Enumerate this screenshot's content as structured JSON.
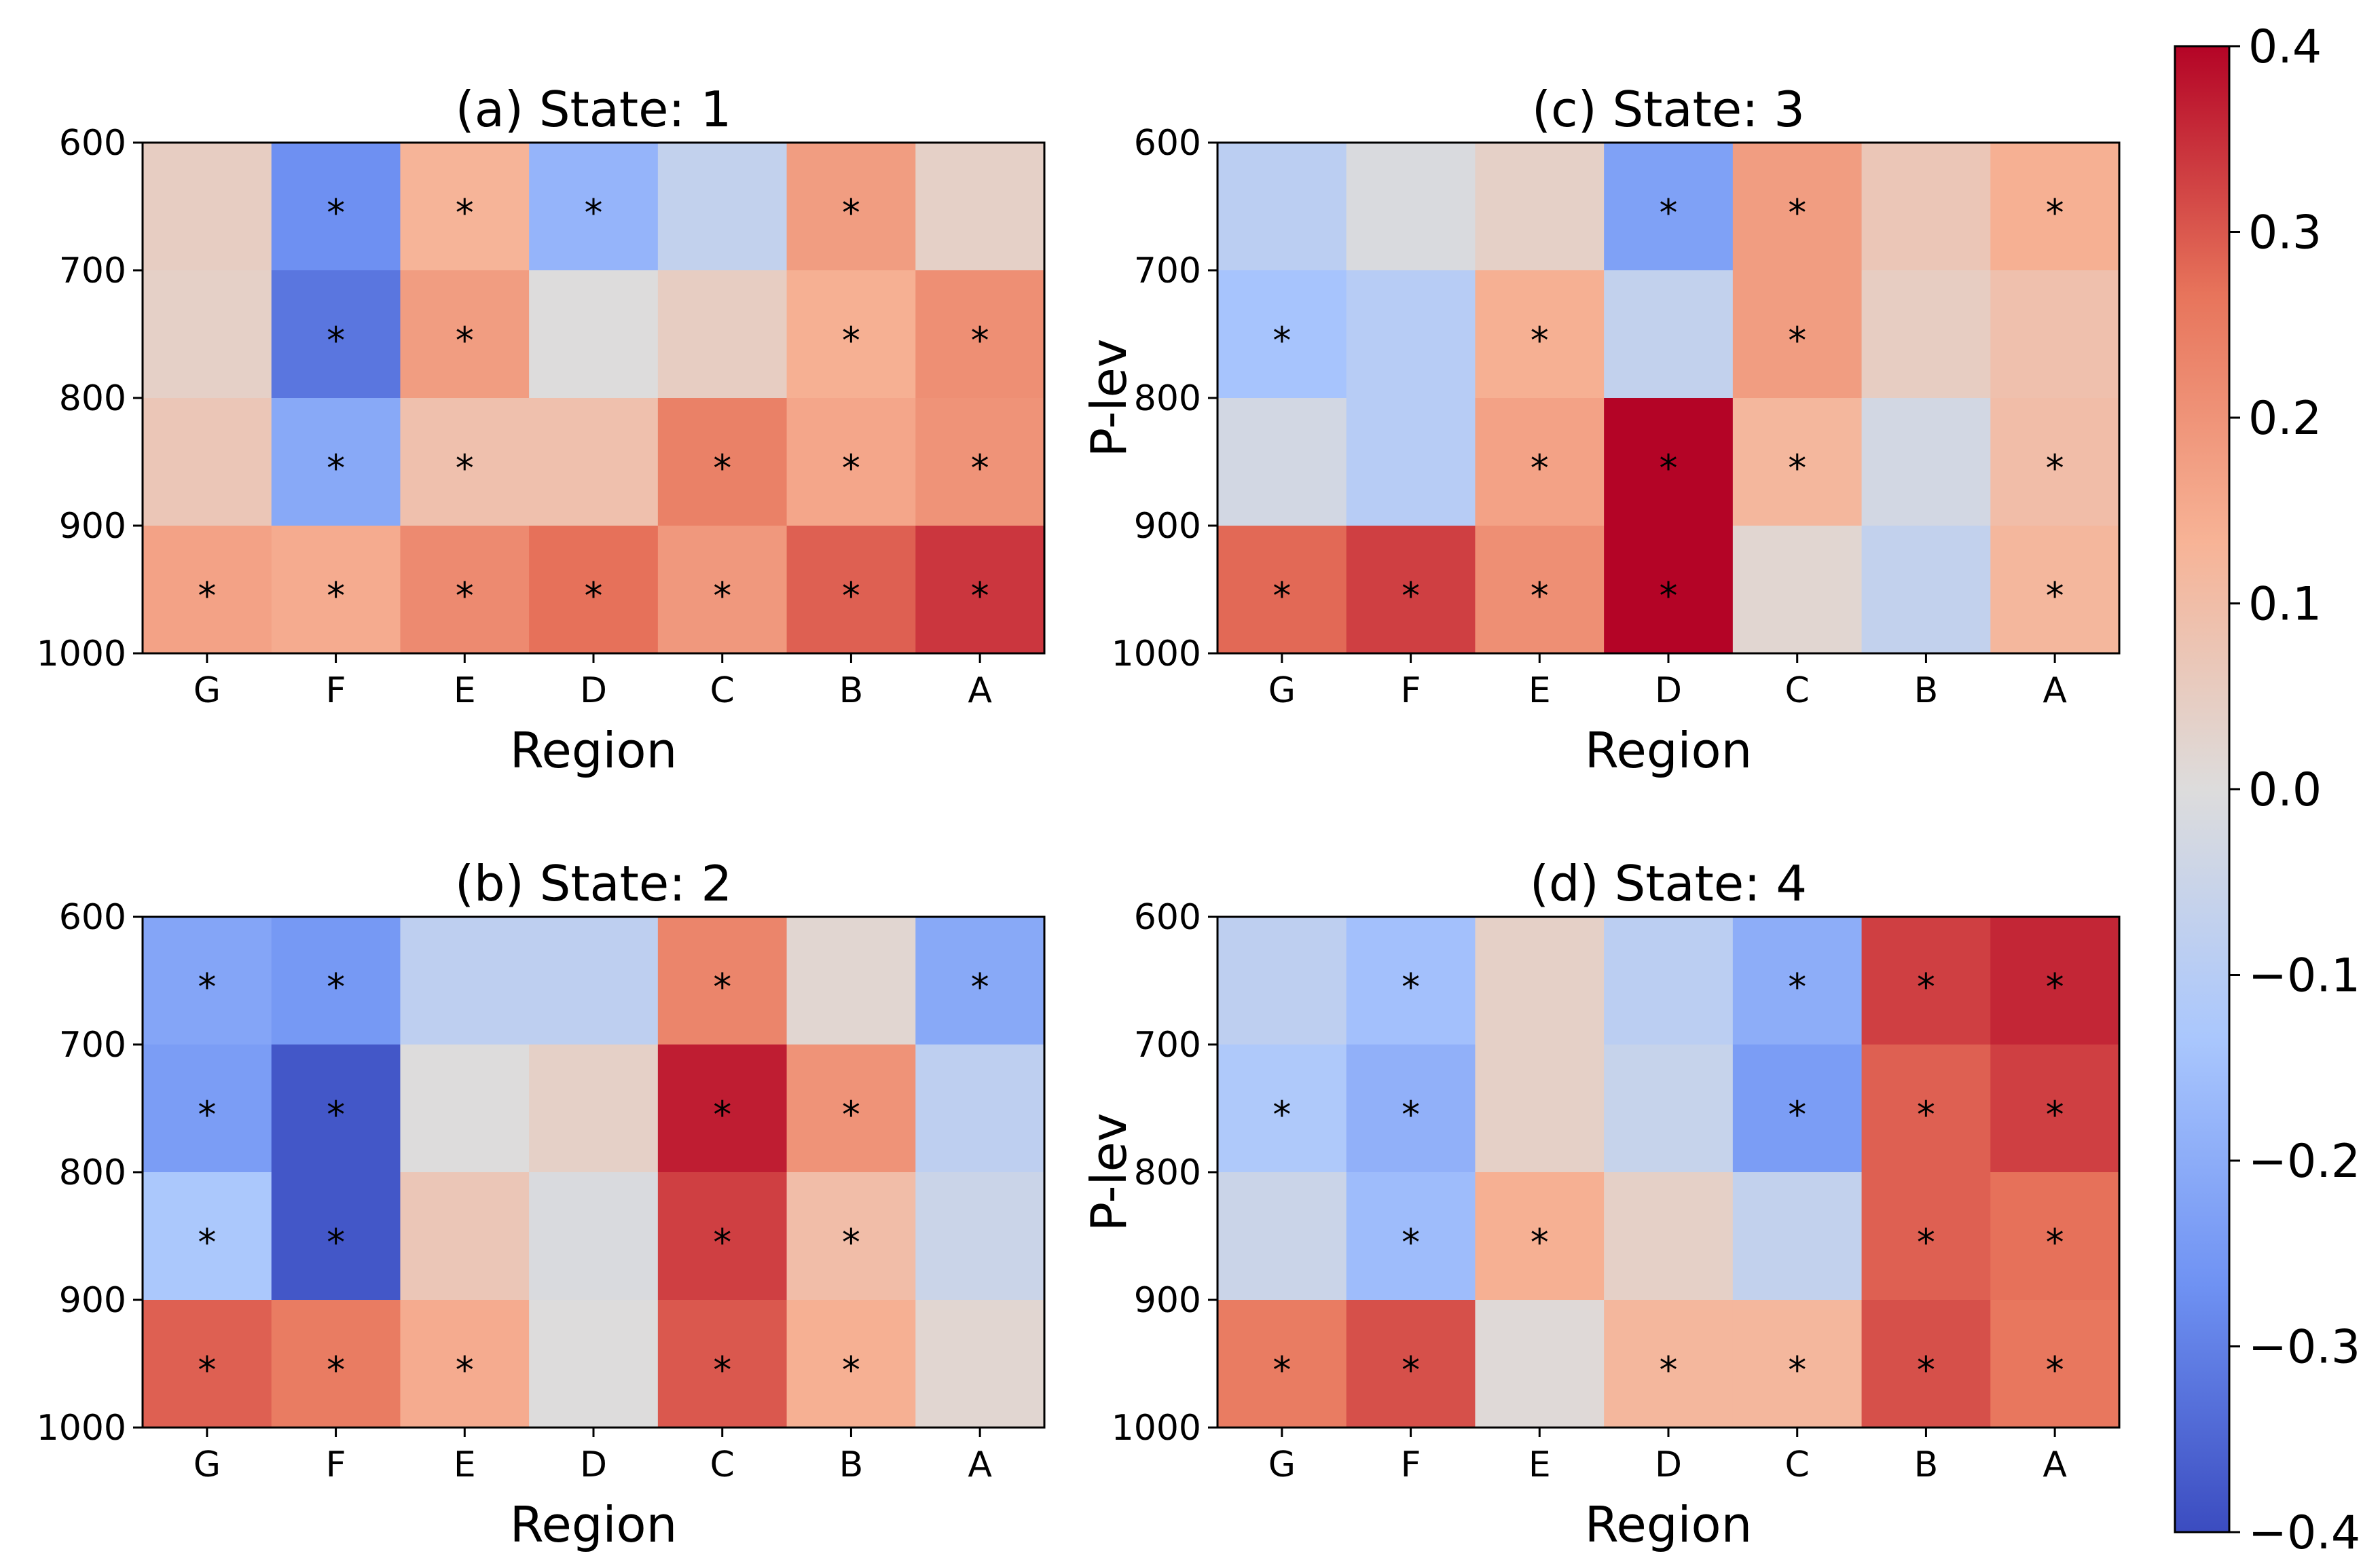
{
  "chart_data": [
    {
      "type": "heatmap",
      "title": "(a) State: 1",
      "xlabel": "Region",
      "ylabel": "",
      "categories": [
        "G",
        "F",
        "E",
        "D",
        "C",
        "B",
        "A"
      ],
      "y_ticks": [
        "600",
        "700",
        "800",
        "900",
        "1000"
      ],
      "rows": [
        "600-700",
        "700-800",
        "800-900",
        "900-1000"
      ],
      "values": [
        [
          0.05,
          -0.27,
          0.13,
          -0.18,
          -0.07,
          0.18,
          0.04
        ],
        [
          0.04,
          -0.32,
          0.18,
          0.0,
          0.05,
          0.14,
          0.21
        ],
        [
          0.07,
          -0.21,
          0.09,
          0.09,
          0.24,
          0.16,
          0.2
        ],
        [
          0.17,
          0.15,
          0.22,
          0.27,
          0.19,
          0.29,
          0.34
        ]
      ],
      "significant": [
        [
          false,
          true,
          true,
          true,
          false,
          true,
          false
        ],
        [
          false,
          true,
          true,
          false,
          false,
          true,
          true
        ],
        [
          false,
          true,
          true,
          false,
          true,
          true,
          true
        ],
        [
          true,
          true,
          true,
          true,
          true,
          true,
          true
        ]
      ]
    },
    {
      "type": "heatmap",
      "title": "(c) State: 3",
      "xlabel": "Region",
      "ylabel": "P-lev",
      "categories": [
        "G",
        "F",
        "E",
        "D",
        "C",
        "B",
        "A"
      ],
      "y_ticks": [
        "600",
        "700",
        "800",
        "900",
        "1000"
      ],
      "rows": [
        "600-700",
        "700-800",
        "800-900",
        "900-1000"
      ],
      "values": [
        [
          -0.09,
          -0.01,
          0.04,
          -0.23,
          0.18,
          0.07,
          0.14
        ],
        [
          -0.14,
          -0.1,
          0.14,
          -0.07,
          0.18,
          0.05,
          0.09
        ],
        [
          -0.03,
          -0.1,
          0.17,
          0.4,
          0.12,
          -0.03,
          0.1
        ],
        [
          0.28,
          0.33,
          0.21,
          0.4,
          0.02,
          -0.07,
          0.12
        ]
      ],
      "significant": [
        [
          false,
          false,
          false,
          true,
          true,
          false,
          true
        ],
        [
          true,
          false,
          true,
          false,
          true,
          false,
          false
        ],
        [
          false,
          false,
          true,
          true,
          true,
          false,
          true
        ],
        [
          true,
          true,
          true,
          true,
          false,
          false,
          true
        ]
      ]
    },
    {
      "type": "heatmap",
      "title": "(b) State: 2",
      "xlabel": "Region",
      "ylabel": "",
      "categories": [
        "G",
        "F",
        "E",
        "D",
        "C",
        "B",
        "A"
      ],
      "y_ticks": [
        "600",
        "700",
        "800",
        "900",
        "1000"
      ],
      "rows": [
        "600-700",
        "700-800",
        "800-900",
        "900-1000"
      ],
      "values": [
        [
          -0.22,
          -0.25,
          -0.08,
          -0.08,
          0.23,
          0.02,
          -0.21
        ],
        [
          -0.24,
          -0.38,
          0.0,
          0.04,
          0.37,
          0.2,
          -0.08
        ],
        [
          -0.13,
          -0.38,
          0.07,
          -0.01,
          0.33,
          0.1,
          -0.05
        ],
        [
          0.29,
          0.25,
          0.15,
          0.0,
          0.3,
          0.14,
          0.02
        ]
      ],
      "significant": [
        [
          true,
          true,
          false,
          false,
          true,
          false,
          true
        ],
        [
          true,
          true,
          false,
          false,
          true,
          true,
          false
        ],
        [
          true,
          true,
          false,
          false,
          true,
          true,
          false
        ],
        [
          true,
          true,
          true,
          false,
          true,
          true,
          false
        ]
      ]
    },
    {
      "type": "heatmap",
      "title": "(d) State: 4",
      "xlabel": "Region",
      "ylabel": "P-lev",
      "categories": [
        "G",
        "F",
        "E",
        "D",
        "C",
        "B",
        "A"
      ],
      "y_ticks": [
        "600",
        "700",
        "800",
        "900",
        "1000"
      ],
      "rows": [
        "600-700",
        "700-800",
        "800-900",
        "900-1000"
      ],
      "values": [
        [
          -0.08,
          -0.15,
          0.04,
          -0.09,
          -0.2,
          0.33,
          0.36
        ],
        [
          -0.12,
          -0.19,
          0.04,
          -0.06,
          -0.24,
          0.29,
          0.33
        ],
        [
          -0.05,
          -0.16,
          0.14,
          0.04,
          -0.07,
          0.29,
          0.27
        ],
        [
          0.25,
          0.31,
          0.01,
          0.12,
          0.12,
          0.31,
          0.26
        ]
      ],
      "significant": [
        [
          false,
          true,
          false,
          false,
          true,
          true,
          true
        ],
        [
          true,
          true,
          false,
          false,
          true,
          true,
          true
        ],
        [
          false,
          true,
          true,
          false,
          false,
          true,
          true
        ],
        [
          true,
          true,
          false,
          true,
          true,
          true,
          true
        ]
      ]
    }
  ],
  "colorbar": {
    "range": [
      -0.4,
      0.4
    ],
    "ticks": [
      "0.4",
      "0.3",
      "0.2",
      "0.1",
      "0.0",
      "−0.1",
      "−0.2",
      "−0.3",
      "−0.4"
    ],
    "colormap": [
      "#3b4cc0",
      "#6f92f3",
      "#aac7fd",
      "#dddcdc",
      "#f7b396",
      "#e7745b",
      "#b40426"
    ]
  },
  "marker_symbol": "*"
}
